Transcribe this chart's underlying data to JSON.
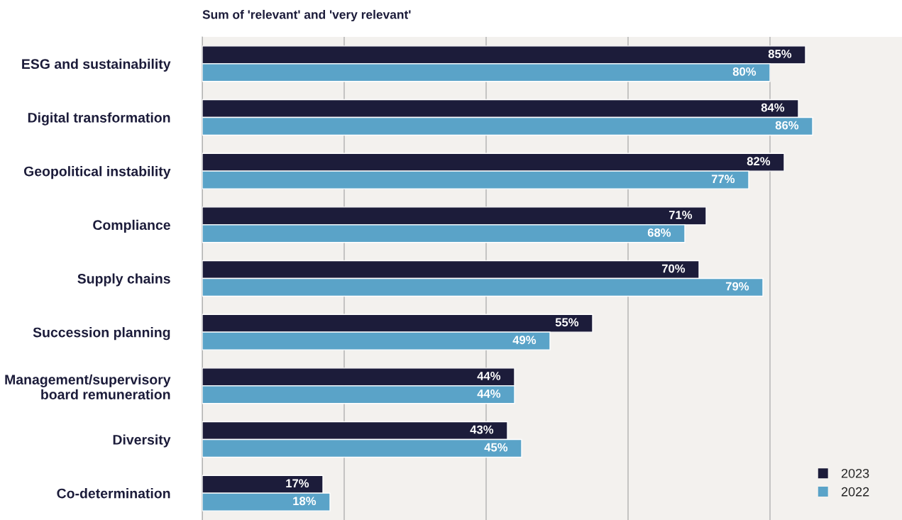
{
  "chart_data": {
    "type": "bar",
    "orientation": "horizontal",
    "title": "Sum of 'relevant' and 'very relevant'",
    "categories": [
      "ESG and sustainability",
      "Digital transformation",
      "Geopolitical instability",
      "Compliance",
      "Supply chains",
      "Succession planning",
      "Management/supervisory\nboard remuneration",
      "Diversity",
      "Co-determination"
    ],
    "series": [
      {
        "name": "2023",
        "color": "#1c1c3a",
        "values": [
          85,
          84,
          82,
          71,
          70,
          55,
          44,
          43,
          17
        ],
        "value_labels": [
          "85%",
          "84%",
          "82%",
          "71%",
          "70%",
          "55%",
          "44%",
          "43%",
          "17%"
        ]
      },
      {
        "name": "2022",
        "color": "#5aa3c8",
        "values": [
          80,
          86,
          77,
          68,
          79,
          49,
          44,
          45,
          18
        ],
        "value_labels": [
          "80%",
          "86%",
          "77%",
          "68%",
          "79%",
          "49%",
          "44%",
          "45%",
          "18%"
        ]
      }
    ],
    "xlim": [
      0,
      98.6
    ],
    "xticks": [
      {
        "value": 0,
        "label": null
      },
      {
        "value": 20,
        "label": null
      },
      {
        "value": 40,
        "label": null
      },
      {
        "value": 60,
        "label": null
      },
      {
        "value": 80,
        "label": null
      }
    ],
    "grid": "x",
    "legend": "bottom right",
    "tick_labels": "y"
  }
}
